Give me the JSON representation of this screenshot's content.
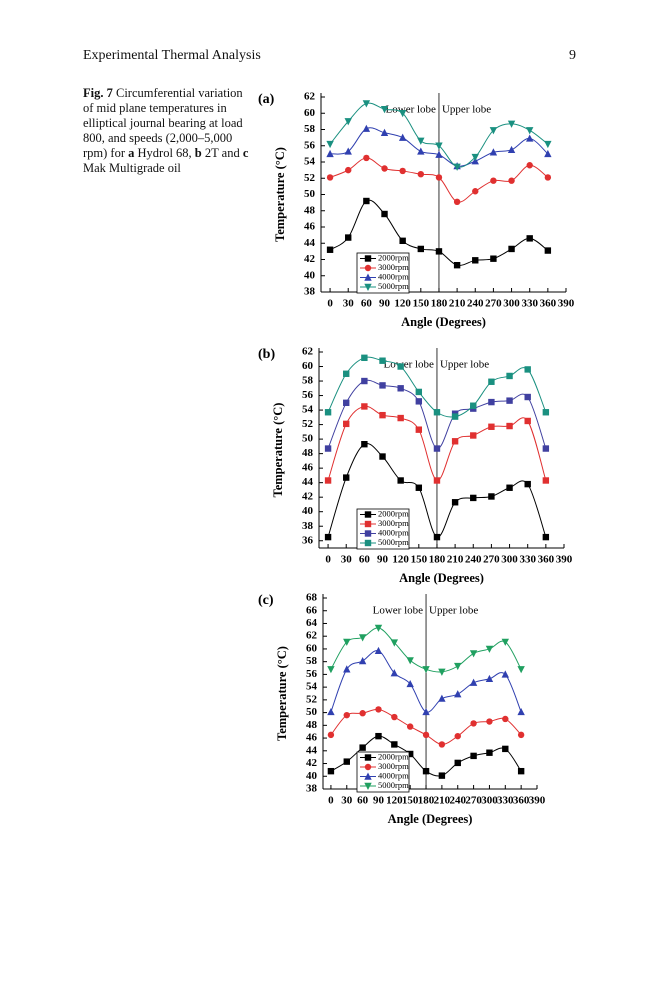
{
  "header": {
    "title": "Experimental Thermal Analysis",
    "page": "9"
  },
  "caption": {
    "label": "Fig. 7",
    "text": "Circumferential variation of mid plane temperatures in elliptical journal bearing at load 800, and speeds (2,000–5,000 rpm) for",
    "items": [
      {
        "key": "a",
        "text": "Hydrol 68,"
      },
      {
        "key": "b",
        "text": "2T and"
      },
      {
        "key": "c",
        "text": "Mak Multigrade oil"
      }
    ]
  },
  "chart_data": [
    {
      "type": "line",
      "panel": "(a)",
      "ylabel": "Temperature (°C)",
      "xlabel": "Angle (Degrees)",
      "annotations": [
        "Lower lobe",
        "Upper lobe"
      ],
      "vline": 180,
      "x": [
        0,
        30,
        60,
        90,
        120,
        150,
        180,
        210,
        240,
        270,
        300,
        330,
        360
      ],
      "xlim": [
        -15,
        390
      ],
      "xticks": [
        0,
        30,
        60,
        90,
        120,
        150,
        180,
        210,
        240,
        270,
        300,
        330,
        360,
        390
      ],
      "ylim": [
        38,
        62
      ],
      "yticks": [
        38,
        40,
        42,
        44,
        46,
        48,
        50,
        52,
        54,
        56,
        58,
        60,
        62
      ],
      "series": [
        {
          "name": "2000rpm",
          "color": "#000000",
          "marker": "square",
          "values": [
            43.2,
            44.7,
            49.2,
            47.6,
            44.3,
            43.3,
            43.0,
            41.3,
            41.9,
            42.1,
            43.3,
            44.6,
            43.1
          ]
        },
        {
          "name": "3000rpm",
          "color": "#e03030",
          "marker": "circle",
          "values": [
            52.1,
            53.0,
            54.5,
            53.2,
            52.9,
            52.5,
            52.1,
            49.1,
            50.4,
            51.7,
            51.7,
            53.6,
            52.1
          ]
        },
        {
          "name": "4000rpm",
          "color": "#3040b0",
          "marker": "triangle",
          "values": [
            55.0,
            55.3,
            58.1,
            57.6,
            57.0,
            55.3,
            54.9,
            53.5,
            54.1,
            55.2,
            55.5,
            56.9,
            55.0
          ]
        },
        {
          "name": "5000rpm",
          "color": "#1a9080",
          "marker": "down",
          "values": [
            56.2,
            59.0,
            61.2,
            60.5,
            60.0,
            56.6,
            56.0,
            53.4,
            54.6,
            57.9,
            58.7,
            57.9,
            56.2
          ]
        }
      ]
    },
    {
      "type": "line",
      "panel": "(b)",
      "ylabel": "Temperature (°C)",
      "xlabel": "Angle (Degrees)",
      "annotations": [
        "Lower lobe",
        "Upper lobe"
      ],
      "vline": 180,
      "x": [
        0,
        30,
        60,
        90,
        120,
        150,
        180,
        210,
        240,
        270,
        300,
        330,
        360
      ],
      "xlim": [
        -15,
        390
      ],
      "xticks": [
        0,
        30,
        60,
        90,
        120,
        150,
        180,
        210,
        240,
        270,
        300,
        330,
        360,
        390
      ],
      "ylim": [
        35,
        62
      ],
      "yticks": [
        36,
        38,
        40,
        42,
        44,
        46,
        48,
        50,
        52,
        54,
        56,
        58,
        60,
        62
      ],
      "series": [
        {
          "name": "2000rpm",
          "color": "#000000",
          "marker": "square",
          "values": [
            36.5,
            44.7,
            49.3,
            47.6,
            44.3,
            43.3,
            36.5,
            41.3,
            41.9,
            42.1,
            43.3,
            43.8,
            36.5
          ]
        },
        {
          "name": "3000rpm",
          "color": "#e03030",
          "marker": "square",
          "values": [
            44.3,
            52.1,
            54.5,
            53.3,
            52.9,
            51.3,
            44.3,
            49.7,
            50.5,
            51.7,
            51.8,
            52.5,
            44.3
          ]
        },
        {
          "name": "4000rpm",
          "color": "#4040a0",
          "marker": "square",
          "values": [
            48.7,
            55.0,
            58.0,
            57.4,
            57.0,
            55.2,
            48.7,
            53.5,
            54.2,
            55.1,
            55.3,
            55.8,
            48.7
          ]
        },
        {
          "name": "5000rpm",
          "color": "#1a9080",
          "marker": "square",
          "values": [
            53.7,
            59.0,
            61.2,
            60.8,
            60.0,
            56.5,
            53.7,
            53.1,
            54.6,
            57.9,
            58.7,
            59.6,
            53.7
          ]
        }
      ]
    },
    {
      "type": "line",
      "panel": "(c)",
      "ylabel": "Temperature (°C)",
      "xlabel": "Angle (Degrees)",
      "annotations": [
        "Lower lobe",
        "Upper lobe"
      ],
      "vline": 180,
      "x": [
        0,
        30,
        60,
        90,
        120,
        150,
        180,
        210,
        240,
        270,
        300,
        330,
        360
      ],
      "xlim": [
        -15,
        390
      ],
      "xticks": [
        0,
        30,
        60,
        90,
        120,
        150,
        180,
        210,
        240,
        270,
        300,
        330,
        360,
        390
      ],
      "ylim": [
        38,
        68
      ],
      "yticks": [
        38,
        40,
        42,
        44,
        46,
        48,
        50,
        52,
        54,
        56,
        58,
        60,
        62,
        64,
        66,
        68
      ],
      "series": [
        {
          "name": "2000rpm",
          "color": "#000000",
          "marker": "square",
          "values": [
            40.8,
            42.3,
            44.5,
            46.3,
            45.0,
            43.5,
            40.8,
            40.1,
            42.1,
            43.2,
            43.7,
            44.3,
            40.8
          ]
        },
        {
          "name": "3000rpm",
          "color": "#e03030",
          "marker": "circle",
          "values": [
            46.5,
            49.6,
            49.9,
            50.5,
            49.3,
            47.8,
            46.5,
            45.0,
            46.3,
            48.3,
            48.6,
            49.0,
            46.5
          ]
        },
        {
          "name": "4000rpm",
          "color": "#3040b0",
          "marker": "triangle",
          "values": [
            50.1,
            56.8,
            58.1,
            59.7,
            56.2,
            54.5,
            50.1,
            52.2,
            52.9,
            54.7,
            55.3,
            56.0,
            50.1
          ]
        },
        {
          "name": "5000rpm",
          "color": "#20a060",
          "marker": "down",
          "values": [
            56.8,
            61.1,
            61.8,
            63.3,
            61.0,
            58.2,
            56.8,
            56.4,
            57.3,
            59.3,
            60.0,
            61.1,
            56.8
          ]
        }
      ]
    }
  ]
}
